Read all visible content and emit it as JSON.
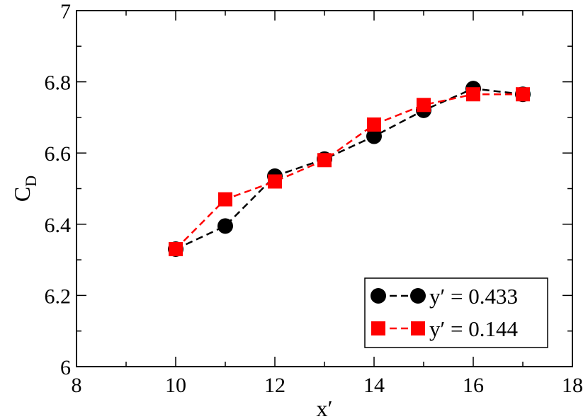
{
  "chart_data": {
    "type": "line",
    "title": "",
    "xlabel": "x′",
    "ylabel_main": "C",
    "ylabel_sub": "D",
    "xlim": [
      8,
      18
    ],
    "ylim": [
      6,
      7
    ],
    "x_ticks": [
      8,
      10,
      12,
      14,
      16,
      18
    ],
    "y_ticks": [
      6,
      6.2,
      6.4,
      6.6,
      6.8,
      7
    ],
    "x_tick_labels": [
      "8",
      "10",
      "12",
      "14",
      "16",
      "18"
    ],
    "y_tick_labels": [
      "6",
      "6.2",
      "6.4",
      "6.6",
      "6.8",
      "7"
    ],
    "x_minor_step": 1,
    "y_minor_step": 0.1,
    "grid": false,
    "legend_position": "bottom-right",
    "series": [
      {
        "name": "y′ = 0.433",
        "marker": "circle",
        "line_style": "dashed",
        "color": "#000000",
        "x": [
          10,
          11,
          12,
          13,
          14,
          15,
          16,
          17
        ],
        "values": [
          6.33,
          6.395,
          6.535,
          6.583,
          6.647,
          6.72,
          6.781,
          6.765
        ]
      },
      {
        "name": "y′ = 0.144",
        "marker": "square",
        "line_style": "dashed",
        "color": "#ff0000",
        "x": [
          10,
          11,
          12,
          13,
          14,
          15,
          16,
          17
        ],
        "values": [
          6.33,
          6.47,
          6.52,
          6.58,
          6.68,
          6.735,
          6.765,
          6.765
        ]
      }
    ]
  }
}
